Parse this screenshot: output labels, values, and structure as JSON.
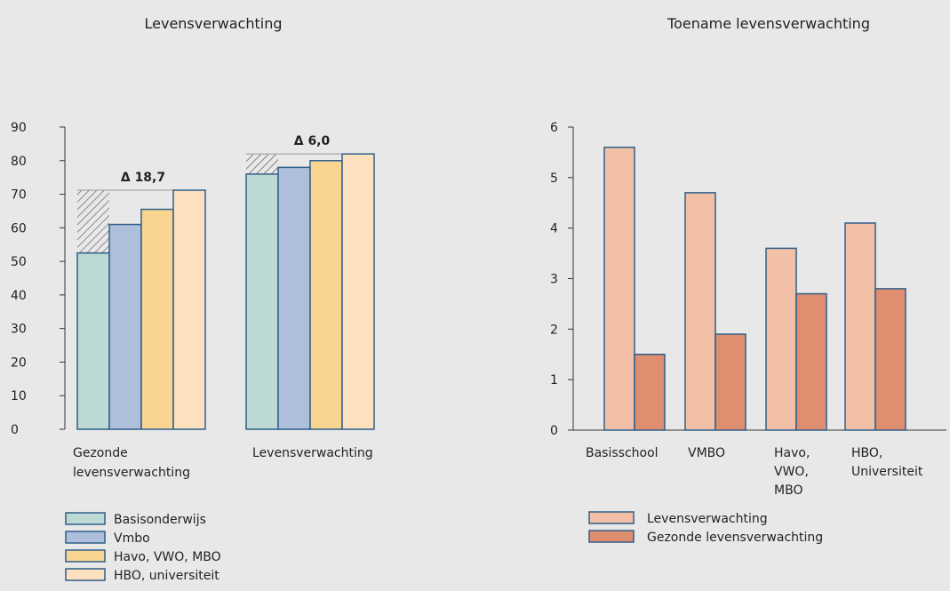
{
  "colors": {
    "background": "#e8e8e8",
    "bar_stroke": "#2f5f8a",
    "axis": "#333333",
    "hatch": "#555555",
    "reference_line": "#999999"
  },
  "chart_data": [
    {
      "type": "bar",
      "title": "Levensverwachting",
      "categories": [
        "Gezonde levensverwachting",
        "Levensverwachting"
      ],
      "category_lines": [
        [
          "Gezonde",
          "levensverwachting"
        ],
        [
          "Levensverwachting"
        ]
      ],
      "yticks": [
        "0",
        "10",
        "20",
        "30",
        "40",
        "50",
        "60",
        "70",
        "80",
        "90"
      ],
      "ylim": [
        0,
        90
      ],
      "legend_position": "bottom-left",
      "series": [
        {
          "name": "Basisonderwijs",
          "color": "#bcd9d4",
          "values": [
            52.5,
            76
          ]
        },
        {
          "name": "Vmbo",
          "color": "#adbfda",
          "values": [
            61,
            78
          ]
        },
        {
          "name": "Havo, VWO, MBO",
          "color": "#fad591",
          "values": [
            65.5,
            80
          ]
        },
        {
          "name": "HBO, universiteit",
          "color": "#fde0bd",
          "values": [
            71.2,
            82
          ]
        }
      ],
      "annotations": [
        {
          "text": "Δ 18,7",
          "category": 0
        },
        {
          "text": "Δ 6,0",
          "category": 1
        }
      ]
    },
    {
      "type": "bar",
      "title": "Toename levensverwachting",
      "categories": [
        "Basisschool",
        "VMBO",
        "Havo, VWO, MBO",
        "HBO, Universiteit"
      ],
      "category_lines": [
        [
          "Basisschool"
        ],
        [
          "VMBO"
        ],
        [
          "Havo,",
          "VWO,",
          "MBO"
        ],
        [
          "HBO,",
          "Universiteit"
        ]
      ],
      "yticks": [
        "0",
        "1",
        "2",
        "3",
        "4",
        "5",
        "6"
      ],
      "ylim": [
        0,
        6
      ],
      "legend_position": "bottom-left",
      "series": [
        {
          "name": "Levensverwachting",
          "color": "#f2c0a6",
          "values": [
            5.6,
            4.7,
            3.6,
            4.1
          ]
        },
        {
          "name": "Gezonde levensverwachting",
          "color": "#e08e70",
          "values": [
            1.5,
            1.9,
            2.7,
            2.8
          ]
        }
      ]
    }
  ]
}
